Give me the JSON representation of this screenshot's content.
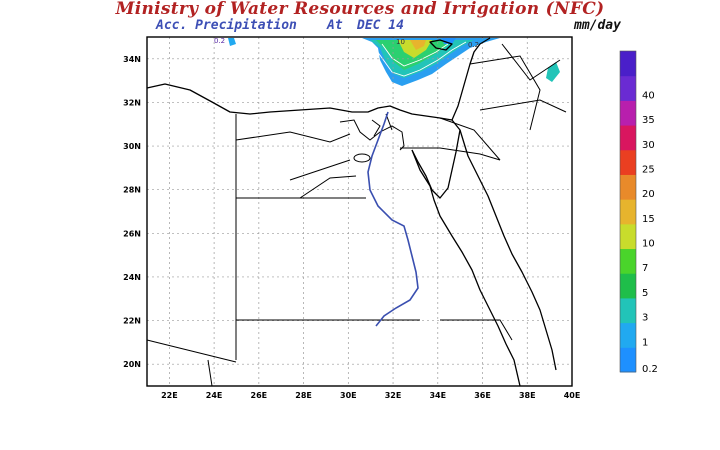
{
  "header": {
    "title": "Ministry of Water Resources and Irrigation (NFC)",
    "product": "Acc. Precipitation",
    "at_label": "At",
    "date": "DEC 14",
    "units": "mm/day"
  },
  "map": {
    "lat_ticks": [
      "34N",
      "32N",
      "30N",
      "28N",
      "26N",
      "24N",
      "22N",
      "20N"
    ],
    "lon_ticks": [
      "22E",
      "24E",
      "26E",
      "28E",
      "30E",
      "32E",
      "34E",
      "36E",
      "38E",
      "40E"
    ],
    "contour_labels": [
      "0.2",
      "10",
      "0.2"
    ]
  },
  "legend": {
    "levels": [
      "0.2",
      "1",
      "3",
      "5",
      "7",
      "10",
      "15",
      "20",
      "25",
      "30",
      "35",
      "40"
    ],
    "colors": [
      "#1e90ff",
      "#21a9f0",
      "#22c4b8",
      "#1fbe4a",
      "#4ad42b",
      "#c8dc2c",
      "#e7b42d",
      "#e88a2a",
      "#ea3f21",
      "#d9165f",
      "#b81fad",
      "#6a2bd3",
      "#4a1fc9"
    ]
  }
}
